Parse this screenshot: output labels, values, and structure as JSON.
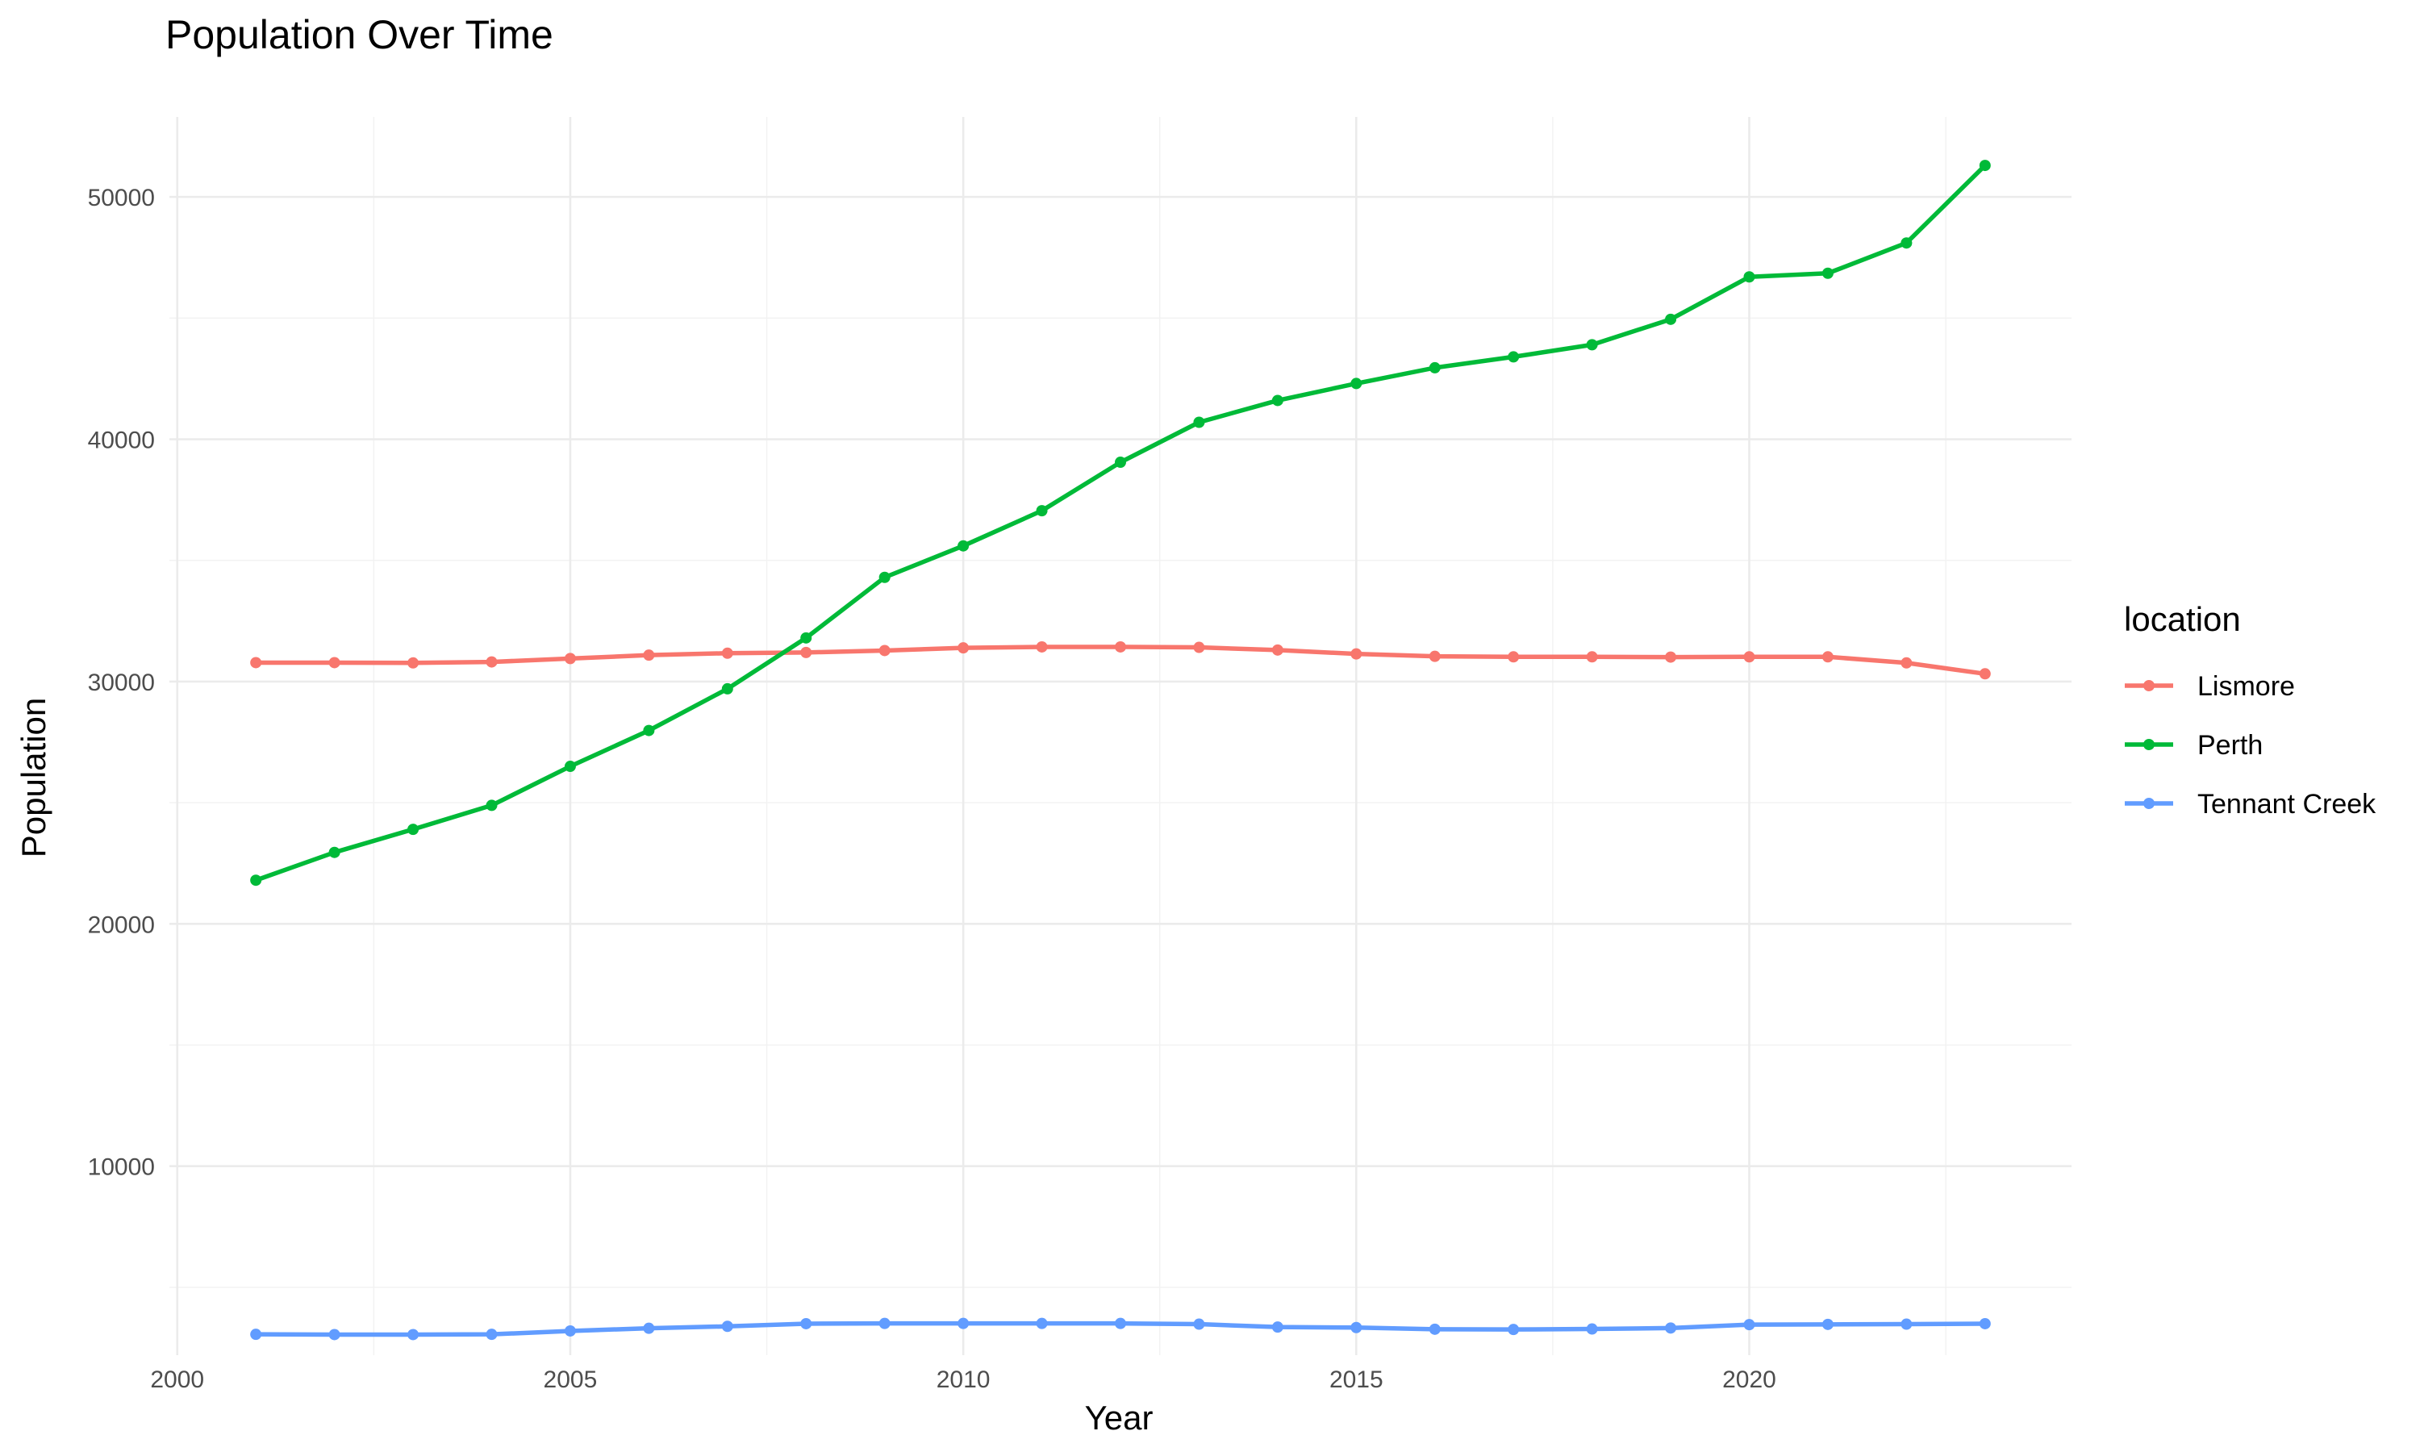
{
  "chart_data": {
    "type": "line",
    "title": "Population Over Time",
    "xlabel": "Year",
    "ylabel": "Population",
    "xlim": [
      1999.9,
      2024.1
    ],
    "ylim": [
      2200,
      53300
    ],
    "x_ticks": [
      2000,
      2005,
      2010,
      2015,
      2020
    ],
    "y_ticks": [
      10000,
      20000,
      30000,
      40000,
      50000
    ],
    "grid": true,
    "legend": {
      "title": "location",
      "position": "right"
    },
    "x": [
      2001,
      2002,
      2003,
      2004,
      2005,
      2006,
      2007,
      2008,
      2009,
      2010,
      2011,
      2012,
      2013,
      2014,
      2015,
      2016,
      2017,
      2018,
      2019,
      2020,
      2021,
      2022,
      2023
    ],
    "series": [
      {
        "name": "Lismore",
        "color": "#F8766D",
        "values": [
          30780,
          30780,
          30770,
          30810,
          30950,
          31090,
          31170,
          31200,
          31280,
          31390,
          31430,
          31430,
          31410,
          31300,
          31140,
          31040,
          31020,
          31020,
          31010,
          31020,
          31020,
          30770,
          30320
        ]
      },
      {
        "name": "Perth",
        "color": "#00BA38",
        "values": [
          21800,
          22950,
          23900,
          24890,
          26500,
          27980,
          29700,
          31800,
          34300,
          35600,
          37050,
          39050,
          40700,
          41600,
          42300,
          42950,
          43400,
          43900,
          44950,
          46700,
          46850,
          48100,
          51300
        ]
      },
      {
        "name": "Tennant Creek",
        "color": "#619CFF",
        "values": [
          3060,
          3050,
          3050,
          3060,
          3200,
          3310,
          3390,
          3500,
          3510,
          3510,
          3510,
          3510,
          3480,
          3360,
          3340,
          3270,
          3260,
          3280,
          3320,
          3460,
          3470,
          3480,
          3500
        ]
      }
    ]
  }
}
